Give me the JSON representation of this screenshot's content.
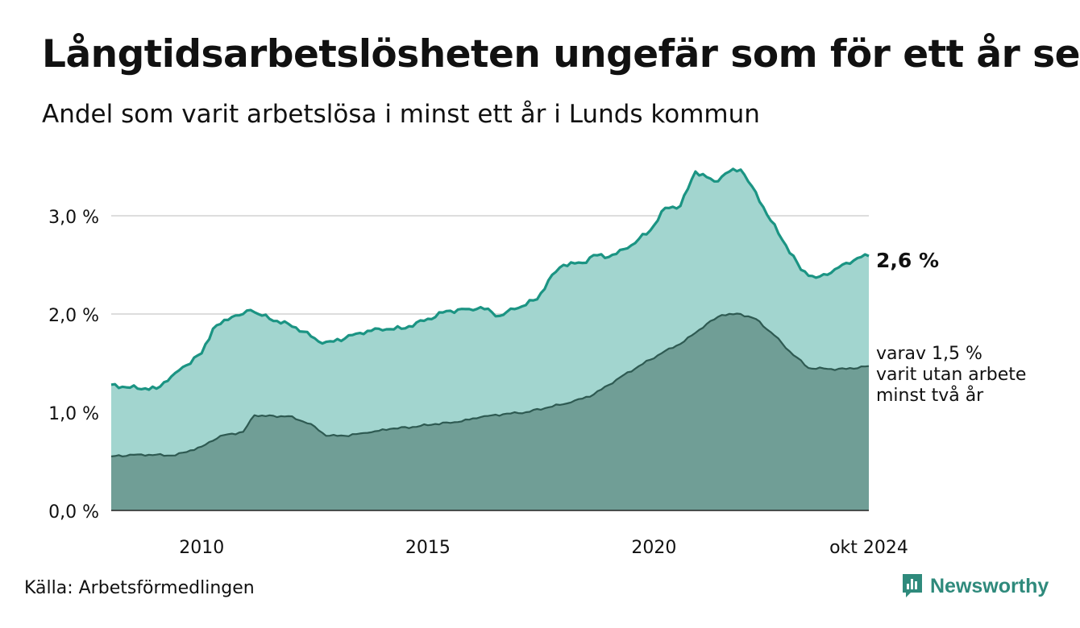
{
  "header": {
    "title": "Långtidsarbetslösheten ungefär som för ett år sen",
    "subtitle": "Andel som varit arbetslösa i minst ett år i Lunds kommun"
  },
  "footer": {
    "source": "Källa: Arbetsförmedlingen",
    "brand": "Newsworthy"
  },
  "colors": {
    "series1_line": "#1b9483",
    "series1_fill": "#a2d5cf",
    "series2_line": "#2e5a52",
    "series2_fill": "#709e96",
    "grid": "#dddddd"
  },
  "chart_data": {
    "type": "area",
    "x_start": "2008-01",
    "x_end": "2024-10",
    "x_interval": "month",
    "xticks": [
      {
        "x": "2010-01",
        "label": "2010"
      },
      {
        "x": "2015-01",
        "label": "2015"
      },
      {
        "x": "2020-01",
        "label": "2020"
      },
      {
        "x": "2024-10",
        "label": "okt 2024"
      }
    ],
    "ylim": [
      0,
      3.5
    ],
    "yticks": [
      {
        "value": 0,
        "label": "0,0 %"
      },
      {
        "value": 1,
        "label": "1,0 %"
      },
      {
        "value": 2,
        "label": "2,0 %"
      },
      {
        "value": 3,
        "label": "3,0 %"
      }
    ],
    "grid": true,
    "series": [
      {
        "key": "minst_ett_ar",
        "end_label": "2,6 %",
        "anchors": [
          [
            "2008-01",
            1.28
          ],
          [
            "2008-06",
            1.25
          ],
          [
            "2009-01",
            1.24
          ],
          [
            "2009-06",
            1.4
          ],
          [
            "2010-01",
            1.6
          ],
          [
            "2010-04",
            1.85
          ],
          [
            "2010-09",
            1.97
          ],
          [
            "2010-12",
            2.0
          ],
          [
            "2011-02",
            2.04
          ],
          [
            "2011-07",
            1.95
          ],
          [
            "2011-12",
            1.9
          ],
          [
            "2012-04",
            1.82
          ],
          [
            "2012-09",
            1.7
          ],
          [
            "2012-12",
            1.72
          ],
          [
            "2013-06",
            1.8
          ],
          [
            "2013-12",
            1.85
          ],
          [
            "2014-06",
            1.85
          ],
          [
            "2014-12",
            1.93
          ],
          [
            "2015-06",
            2.03
          ],
          [
            "2015-12",
            2.05
          ],
          [
            "2016-03",
            2.07
          ],
          [
            "2016-08",
            1.98
          ],
          [
            "2016-12",
            2.05
          ],
          [
            "2017-06",
            2.15
          ],
          [
            "2017-10",
            2.4
          ],
          [
            "2018-01",
            2.5
          ],
          [
            "2018-06",
            2.52
          ],
          [
            "2018-09",
            2.6
          ],
          [
            "2019-01",
            2.58
          ],
          [
            "2019-06",
            2.67
          ],
          [
            "2019-12",
            2.85
          ],
          [
            "2020-04",
            3.08
          ],
          [
            "2020-08",
            3.1
          ],
          [
            "2020-12",
            3.45
          ],
          [
            "2021-05",
            3.35
          ],
          [
            "2021-09",
            3.45
          ],
          [
            "2021-12",
            3.47
          ],
          [
            "2022-03",
            3.3
          ],
          [
            "2022-08",
            2.95
          ],
          [
            "2022-12",
            2.7
          ],
          [
            "2023-04",
            2.45
          ],
          [
            "2023-08",
            2.37
          ],
          [
            "2023-12",
            2.42
          ],
          [
            "2024-04",
            2.52
          ],
          [
            "2024-08",
            2.58
          ],
          [
            "2024-10",
            2.59
          ]
        ]
      },
      {
        "key": "minst_tva_ar",
        "end_label": [
          "varav 1,5 %",
          "varit utan arbete",
          "minst två år"
        ],
        "anchors": [
          [
            "2008-01",
            0.55
          ],
          [
            "2008-08",
            0.57
          ],
          [
            "2009-06",
            0.56
          ],
          [
            "2010-01",
            0.65
          ],
          [
            "2010-06",
            0.76
          ],
          [
            "2010-12",
            0.8
          ],
          [
            "2011-03",
            0.97
          ],
          [
            "2011-06",
            0.96
          ],
          [
            "2011-12",
            0.96
          ],
          [
            "2012-06",
            0.88
          ],
          [
            "2012-10",
            0.76
          ],
          [
            "2013-03",
            0.76
          ],
          [
            "2013-09",
            0.79
          ],
          [
            "2014-03",
            0.83
          ],
          [
            "2014-09",
            0.85
          ],
          [
            "2015-03",
            0.88
          ],
          [
            "2015-09",
            0.9
          ],
          [
            "2016-03",
            0.95
          ],
          [
            "2016-09",
            0.98
          ],
          [
            "2017-03",
            1.0
          ],
          [
            "2017-09",
            1.05
          ],
          [
            "2018-03",
            1.1
          ],
          [
            "2018-09",
            1.18
          ],
          [
            "2019-03",
            1.33
          ],
          [
            "2019-09",
            1.47
          ],
          [
            "2020-03",
            1.6
          ],
          [
            "2020-09",
            1.72
          ],
          [
            "2021-03",
            1.9
          ],
          [
            "2021-07",
            1.99
          ],
          [
            "2021-12",
            2.0
          ],
          [
            "2022-04",
            1.95
          ],
          [
            "2022-09",
            1.78
          ],
          [
            "2023-01",
            1.62
          ],
          [
            "2023-06",
            1.45
          ],
          [
            "2023-12",
            1.44
          ],
          [
            "2024-04",
            1.44
          ],
          [
            "2024-10",
            1.47
          ]
        ]
      }
    ]
  }
}
